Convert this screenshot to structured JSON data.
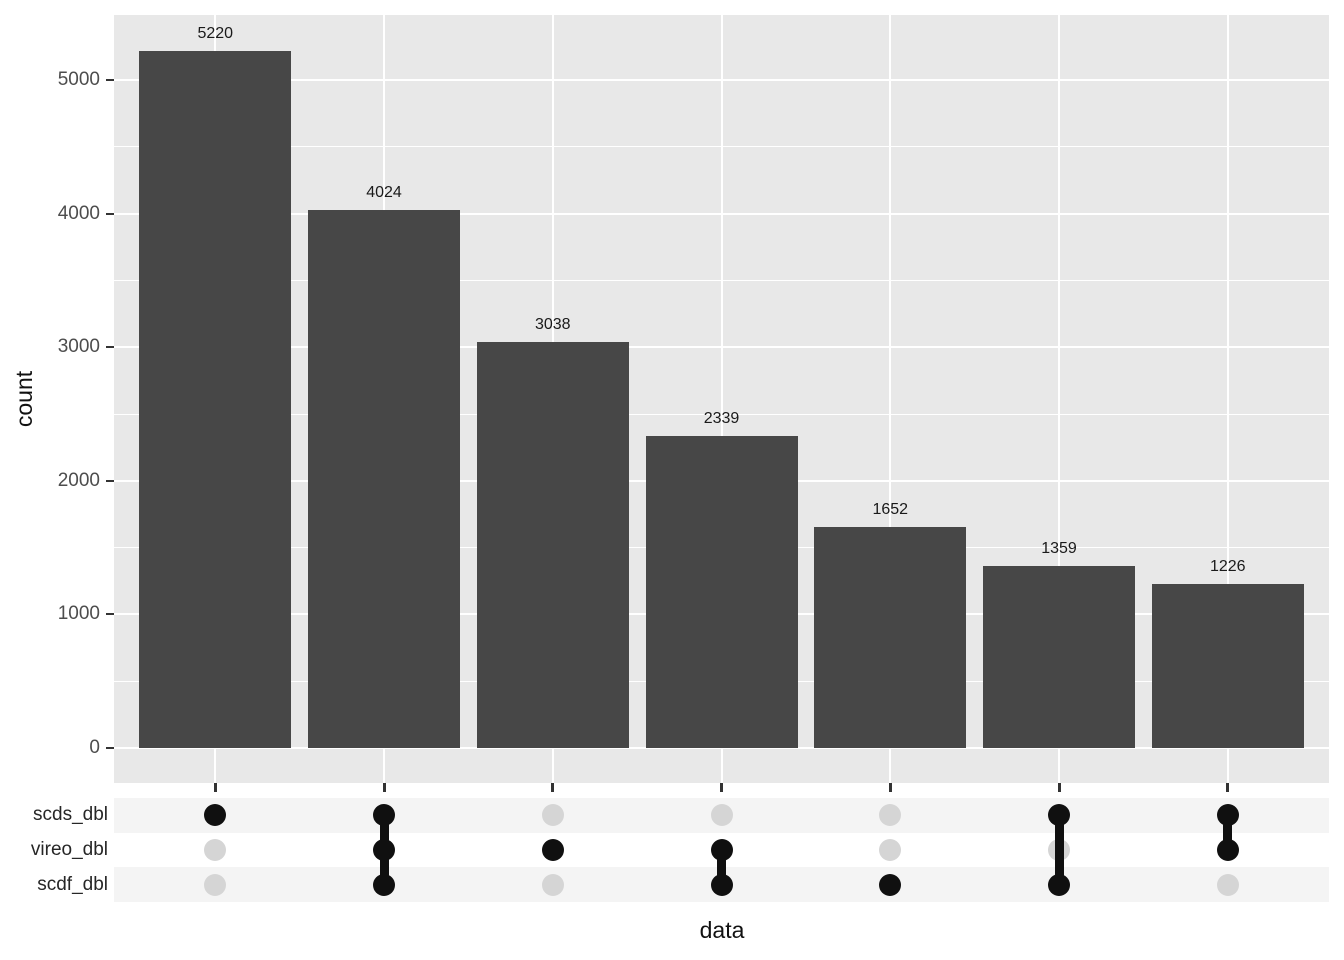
{
  "chart_data": {
    "type": "bar",
    "variant": "upset-plot",
    "title": "",
    "xlabel": "data",
    "ylabel": "count",
    "ylim": [
      -260,
      5490
    ],
    "yticks": [
      0,
      1000,
      2000,
      3000,
      4000,
      5000
    ],
    "minor_yticks": [
      500,
      1500,
      2500,
      3500,
      4500
    ],
    "grid": true,
    "legend": "none",
    "sets": [
      "scds_dbl",
      "vireo_dbl",
      "scdf_dbl"
    ],
    "combinations": [
      {
        "sets": [
          "scds_dbl"
        ],
        "value": 5220
      },
      {
        "sets": [
          "scds_dbl",
          "vireo_dbl",
          "scdf_dbl"
        ],
        "value": 4024
      },
      {
        "sets": [
          "vireo_dbl"
        ],
        "value": 3038
      },
      {
        "sets": [
          "vireo_dbl",
          "scdf_dbl"
        ],
        "value": 2339
      },
      {
        "sets": [
          "scdf_dbl"
        ],
        "value": 1652
      },
      {
        "sets": [
          "scds_dbl",
          "scdf_dbl"
        ],
        "value": 1359
      },
      {
        "sets": [
          "scds_dbl",
          "vireo_dbl"
        ],
        "value": 1226
      }
    ],
    "colors": {
      "bar": "#474747",
      "panel_bg": "#e8e8e8",
      "grid": "#ffffff",
      "matrix_stripe": "#f4f4f4",
      "dot_active": "#101010",
      "dot_inactive": "#d5d5d5",
      "tick_mark": "#333333",
      "tick_label": "#4d4d4d",
      "value_label": "#1a1a1a"
    }
  }
}
